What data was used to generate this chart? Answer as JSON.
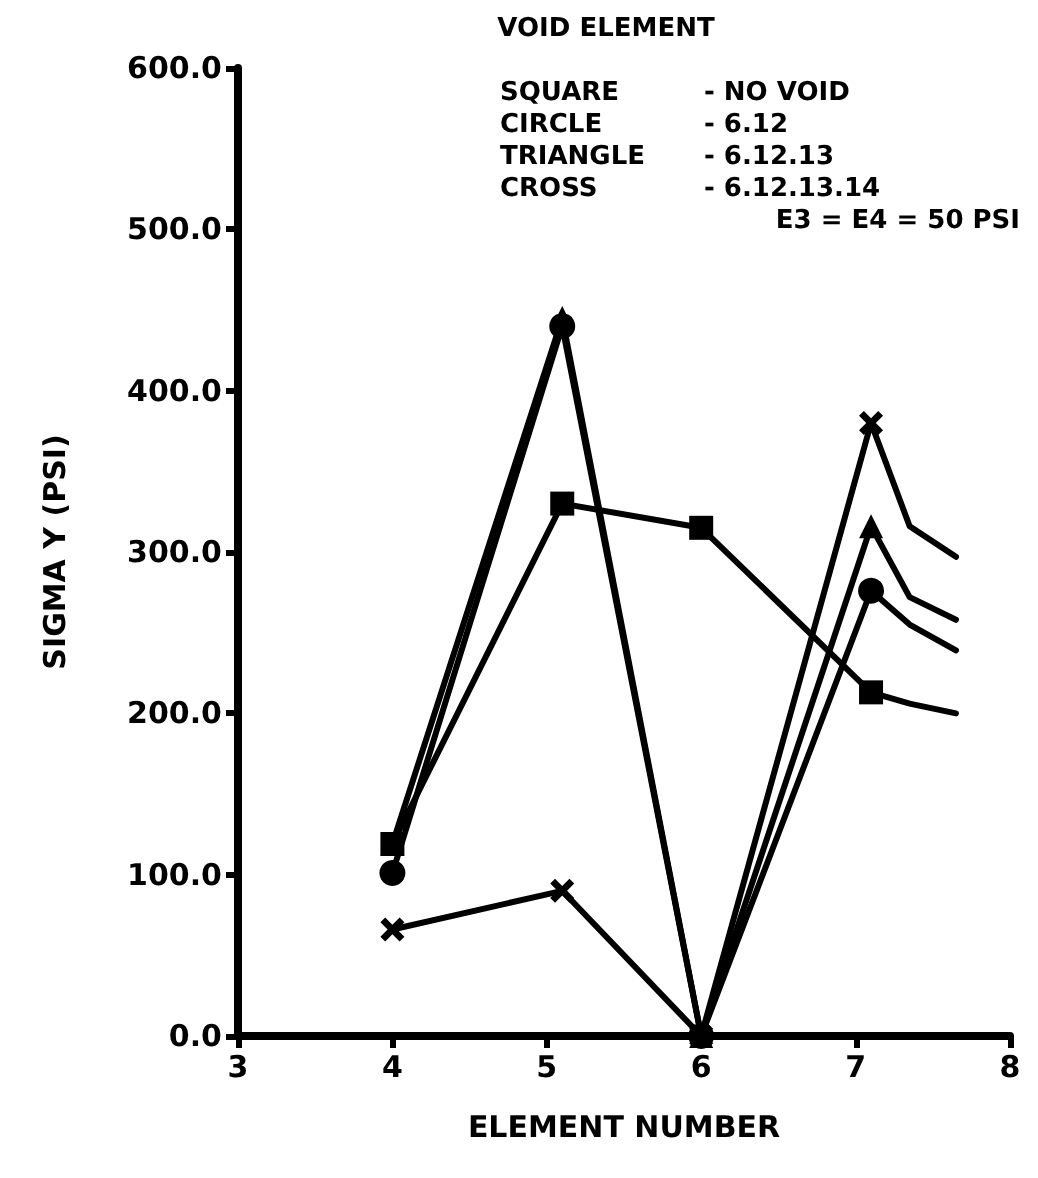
{
  "chart_data": {
    "type": "line",
    "xlabel": "ELEMENT NUMBER",
    "ylabel": "SIGMA Y (PSI)",
    "annotations": [
      "VOID ELEMENT",
      "SQUARE",
      "- NO VOID",
      "CIRCLE",
      "- 6.12",
      "TRIANGLE",
      "- 6.12.13",
      "CROSS",
      "- 6.12.13.14",
      "E3 = E4 = 50 PSI"
    ],
    "xlim": [
      3,
      8
    ],
    "xticks": [
      3,
      4,
      5,
      6,
      7,
      8
    ],
    "ylim": [
      0,
      600
    ],
    "yticks": [
      {
        "value": 0,
        "label": "0.0"
      },
      {
        "value": 100,
        "label": "100.0"
      },
      {
        "value": 200,
        "label": "200.0"
      },
      {
        "value": 300,
        "label": "300.0"
      },
      {
        "value": 400,
        "label": "400.0"
      },
      {
        "value": 500,
        "label": "500.0"
      },
      {
        "value": 600,
        "label": "600.0"
      }
    ],
    "grid": false,
    "series": [
      {
        "color": "#000000",
        "marker": "square",
        "x": [
          4,
          5.1,
          6,
          7.1,
          7.35,
          7.65
        ],
        "values": [
          119,
          330,
          315,
          213,
          206,
          200
        ]
      },
      {
        "color": "#000000",
        "marker": "circle",
        "x": [
          4,
          5.1,
          6,
          7.1,
          7.35,
          7.65
        ],
        "values": [
          101,
          440,
          0,
          276,
          255,
          239
        ]
      },
      {
        "color": "#000000",
        "marker": "triangle",
        "x": [
          4,
          5.1,
          6,
          7.1,
          7.35,
          7.65
        ],
        "values": [
          119,
          445,
          0,
          316,
          272,
          258
        ]
      },
      {
        "color": "#000000",
        "marker": "cross",
        "x": [
          4,
          5.1,
          6,
          7.1,
          7.35,
          7.65
        ],
        "values": [
          66,
          90,
          0,
          380,
          316,
          297
        ]
      }
    ]
  }
}
